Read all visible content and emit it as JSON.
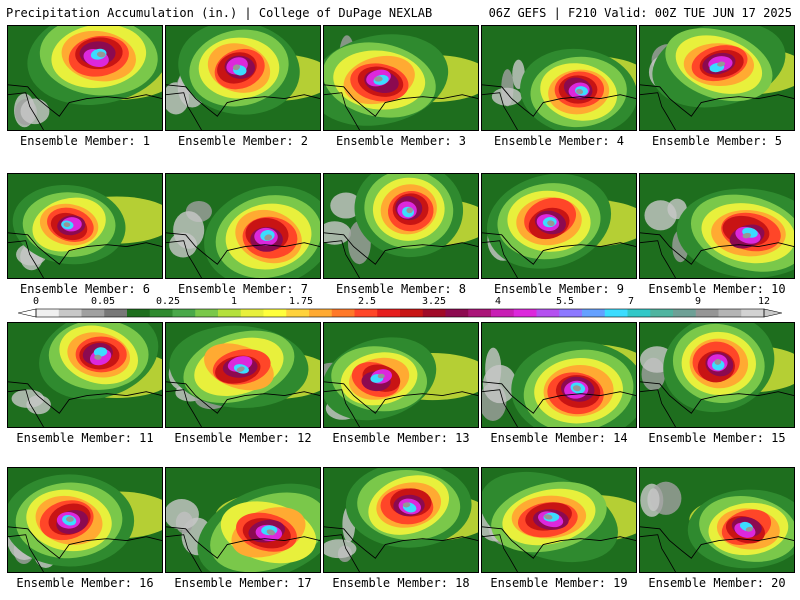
{
  "header": {
    "left": "Precipitation Accumulation (in.) | College of DuPage NEXLAB",
    "right": "06Z GEFS | F210 Valid: 00Z TUE JUN 17 2025"
  },
  "panels": [
    {
      "label": "Ensemble Member: 1"
    },
    {
      "label": "Ensemble Member: 2"
    },
    {
      "label": "Ensemble Member: 3"
    },
    {
      "label": "Ensemble Member: 4"
    },
    {
      "label": "Ensemble Member: 5"
    },
    {
      "label": "Ensemble Member: 6"
    },
    {
      "label": "Ensemble Member: 7"
    },
    {
      "label": "Ensemble Member: 8"
    },
    {
      "label": "Ensemble Member: 9"
    },
    {
      "label": "Ensemble Member: 10"
    },
    {
      "label": "Ensemble Member: 11"
    },
    {
      "label": "Ensemble Member: 12"
    },
    {
      "label": "Ensemble Member: 13"
    },
    {
      "label": "Ensemble Member: 14"
    },
    {
      "label": "Ensemble Member: 15"
    },
    {
      "label": "Ensemble Member: 16"
    },
    {
      "label": "Ensemble Member: 17"
    },
    {
      "label": "Ensemble Member: 18"
    },
    {
      "label": "Ensemble Member: 19"
    },
    {
      "label": "Ensemble Member: 20"
    }
  ],
  "colorbar": {
    "ticks": [
      "0",
      "0.05",
      "0.25",
      "1",
      "1.75",
      "2.5",
      "3.25",
      "4",
      "5.5",
      "7",
      "9",
      "12"
    ],
    "colors": [
      "#f0f0f0",
      "#c8c8c8",
      "#a0a0a0",
      "#787878",
      "#1e6e1e",
      "#2f8a2f",
      "#4aa84a",
      "#7ac84a",
      "#b4e03c",
      "#e8f03c",
      "#ffff3c",
      "#ffd23c",
      "#ffaa32",
      "#ff7828",
      "#ff4628",
      "#e61e1e",
      "#c81414",
      "#a00a28",
      "#8c0a50",
      "#aa1478",
      "#c81eb4",
      "#dc28dc",
      "#b450f0",
      "#8c78ff",
      "#64a0ff",
      "#3cdcff",
      "#32c8c8",
      "#50b4a0",
      "#6ea096",
      "#969696",
      "#b4b4b4",
      "#d2d2d2"
    ]
  }
}
